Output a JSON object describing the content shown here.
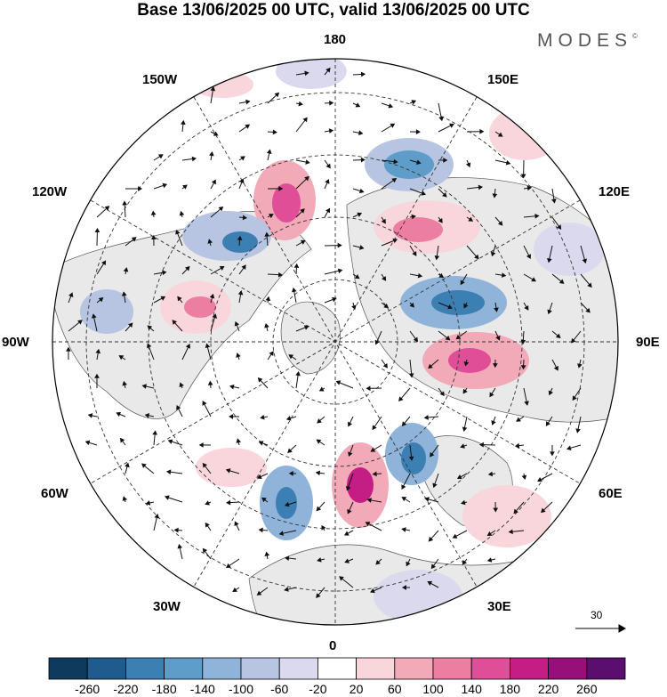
{
  "title": "Base 13/06/2025 00 UTC, valid 13/06/2025 00 UTC",
  "brand": {
    "name": "MODES",
    "mark": "©"
  },
  "map": {
    "projection": "north-polar-stereographic",
    "longitude_labels": {
      "top": "180",
      "bottom": "0",
      "left": "90W",
      "right": "90E",
      "upper_left_1": "150W",
      "upper_left_2": "120W",
      "upper_right_1": "150E",
      "upper_right_2": "120E",
      "lower_left_1": "60W",
      "lower_left_2": "30W",
      "lower_right_1": "60E",
      "lower_right_2": "30E"
    },
    "reference_vector": {
      "value": "30",
      "icon": "arrow-right-icon"
    }
  },
  "colorbar": {
    "colors": [
      "#0e3a5e",
      "#1f5b8c",
      "#3b7fb3",
      "#5e9dc9",
      "#8fb3d9",
      "#b7c5e2",
      "#dad9ee",
      "#ffffff",
      "#f8d6dc",
      "#f2a9b8",
      "#ec7ea2",
      "#e04e98",
      "#c41d84",
      "#97107a",
      "#5a0e6e"
    ],
    "labels": [
      "-260",
      "-220",
      "-180",
      "-140",
      "-100",
      "-60",
      "-20",
      "20",
      "60",
      "100",
      "140",
      "180",
      "220",
      "260"
    ]
  }
}
